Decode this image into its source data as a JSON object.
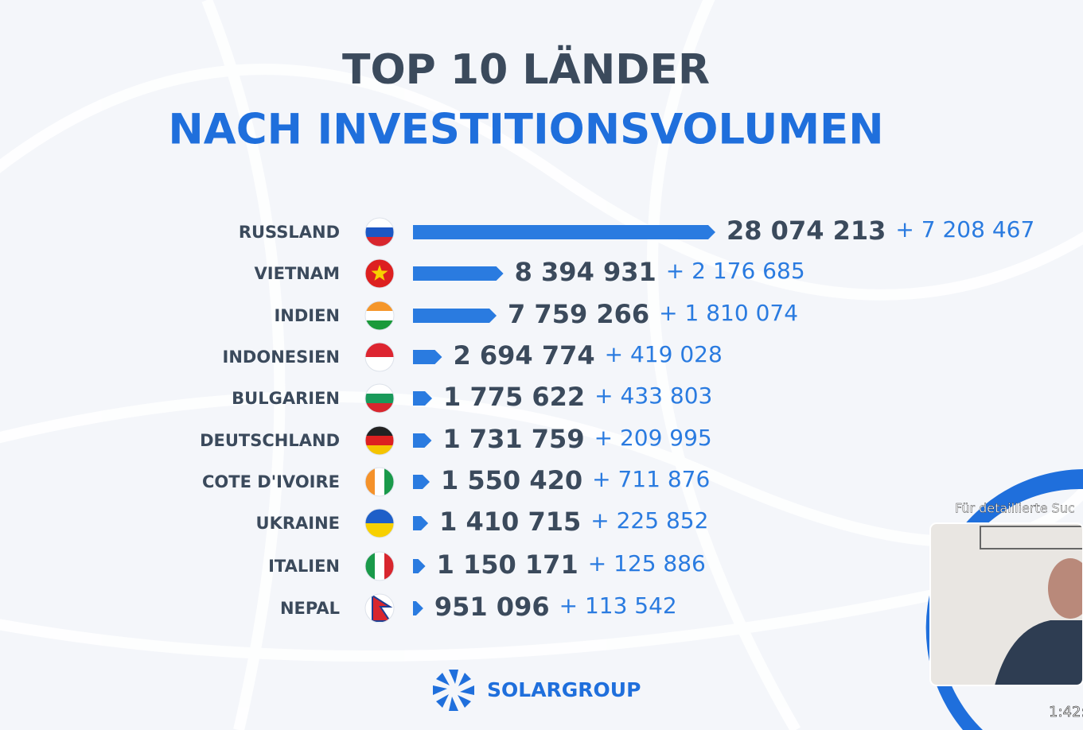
{
  "chart_data": {
    "type": "bar",
    "orientation": "horizontal",
    "title": "TOP 10 LÄNDER",
    "subtitle": "NACH INVESTITIONSVOLUMEN",
    "categories": [
      "RUSSLAND",
      "VIETNAM",
      "INDIEN",
      "INDONESIEN",
      "BULGARIEN",
      "DEUTSCHLAND",
      "COTE D'IVOIRE",
      "UKRAINE",
      "ITALIEN",
      "NEPAL"
    ],
    "values": [
      28074213,
      8394931,
      7759266,
      2694774,
      1775622,
      1731759,
      1550420,
      1410715,
      1150171,
      951096
    ],
    "value_labels": [
      "28 074 213",
      "8 394 931",
      "7 759 266",
      "2 694 774",
      "1 775 622",
      "1 731 759",
      "1 550 420",
      "1 410 715",
      "1 150 171",
      "951 096"
    ],
    "additions": [
      "+ 7 208 467",
      "+ 2 176 685",
      "+ 1 810 074",
      "+ 419 028",
      "+ 433 803",
      "+ 209 995",
      "+ 711 876",
      "+ 225 852",
      "+ 125 886",
      "+ 113 542"
    ],
    "color": "#2a7be0"
  },
  "logo": "SOLARGROUP",
  "overlay": {
    "caption": "Für detaillierte Suc",
    "time": "1:42:"
  }
}
